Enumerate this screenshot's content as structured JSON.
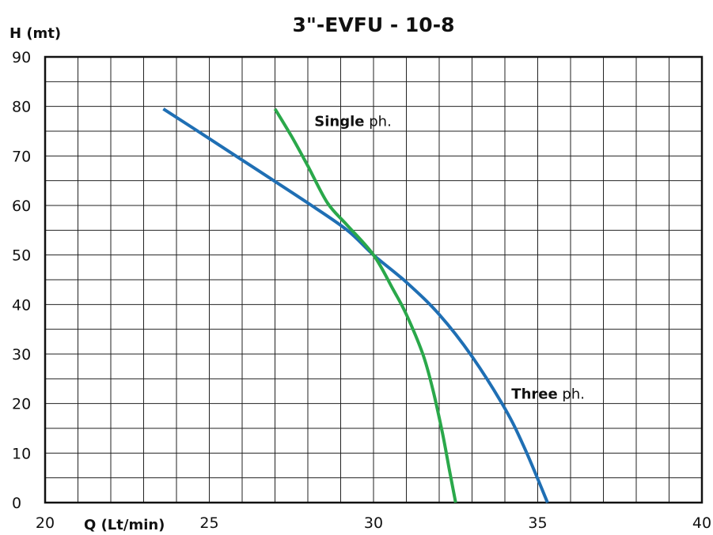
{
  "chart_data": {
    "type": "line",
    "title": "3\"-EVFU - 10-8",
    "xlabel": "Q (Lt/min)",
    "ylabel": "H (mt)",
    "xlim": [
      20,
      40
    ],
    "ylim": [
      0,
      90
    ],
    "xticks": [
      20,
      25,
      30,
      35,
      40
    ],
    "yticks": [
      0,
      10,
      20,
      30,
      40,
      50,
      60,
      70,
      80,
      90
    ],
    "grid": true,
    "series": [
      {
        "name": "Three ph.",
        "color": "#1f6fb4",
        "points": [
          [
            23.6,
            79.5
          ],
          [
            25,
            73.5
          ],
          [
            26.5,
            67
          ],
          [
            28,
            60.5
          ],
          [
            29.2,
            55
          ],
          [
            30,
            50
          ],
          [
            31,
            44.5
          ],
          [
            32,
            38
          ],
          [
            33,
            29.5
          ],
          [
            34,
            19
          ],
          [
            34.6,
            11
          ],
          [
            35.3,
            0
          ]
        ]
      },
      {
        "name": "Single ph.",
        "color": "#2aa84a",
        "points": [
          [
            27,
            79.5
          ],
          [
            27.5,
            74
          ],
          [
            28,
            68
          ],
          [
            28.6,
            60.5
          ],
          [
            29.2,
            56
          ],
          [
            30,
            50
          ],
          [
            30.6,
            43
          ],
          [
            31,
            38
          ],
          [
            31.5,
            30
          ],
          [
            31.8,
            23
          ],
          [
            32.1,
            14
          ],
          [
            32.3,
            7
          ],
          [
            32.5,
            0
          ]
        ]
      }
    ],
    "annotations": [
      {
        "series": "Single ph.",
        "bold": "Single",
        "rest": " ph.",
        "x": 28.2,
        "y": 76
      },
      {
        "series": "Three ph.",
        "bold": "Three",
        "rest": " ph.",
        "x": 34.2,
        "y": 21
      }
    ]
  }
}
